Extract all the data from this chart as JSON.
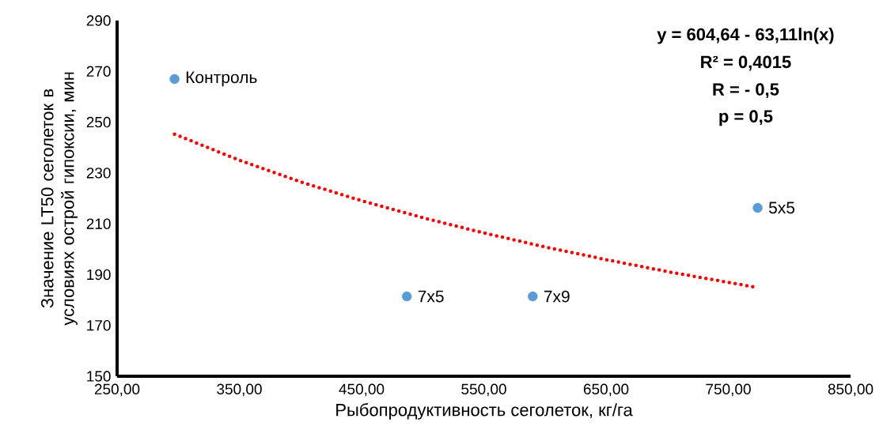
{
  "chart_data": {
    "type": "scatter",
    "xlabel": "Рыбопродуктивность сеголеток, кг/га",
    "ylabel": "Значение LT50 сеголеток в условиях острой гипоксии, мин",
    "xlim": [
      250,
      850
    ],
    "ylim": [
      150,
      290
    ],
    "xticks": [
      {
        "value": 250,
        "label": "250,00"
      },
      {
        "value": 350,
        "label": "350,00"
      },
      {
        "value": 450,
        "label": "450,00"
      },
      {
        "value": 550,
        "label": "550,00"
      },
      {
        "value": 650,
        "label": "650,00"
      },
      {
        "value": 750,
        "label": "750,00"
      },
      {
        "value": 850,
        "label": "850,00"
      }
    ],
    "yticks": [
      150,
      170,
      190,
      210,
      230,
      250,
      270,
      290
    ],
    "series": [
      {
        "color": "#5b9bd5",
        "marker": "circle",
        "x": [
          297,
          487,
          590,
          774
        ],
        "values": [
          267,
          181.4,
          181.4,
          216.3
        ]
      },
      {
        "type": "line",
        "color": "#ff0000",
        "line_style": "dotted",
        "marker": "none",
        "x": [
          297,
          350,
          400,
          450,
          500,
          550,
          600,
          650,
          700,
          774
        ],
        "values": [
          245.3,
          235.0,
          226.5,
          219.1,
          212.4,
          206.4,
          200.9,
          195.9,
          191.2,
          184.9
        ]
      }
    ],
    "annotations": [
      {
        "text": "Контроль",
        "x": 297,
        "y": 267
      },
      {
        "text": "7x5",
        "x": 487,
        "y": 181.4
      },
      {
        "text": "7x9",
        "x": 590,
        "y": 181.4
      },
      {
        "text": "5x5",
        "x": 774,
        "y": 216.3
      },
      "y = 604,64 - 63,11ln(x)",
      "R² = 0,4015",
      "R = - 0,5",
      "p = 0,5"
    ]
  }
}
